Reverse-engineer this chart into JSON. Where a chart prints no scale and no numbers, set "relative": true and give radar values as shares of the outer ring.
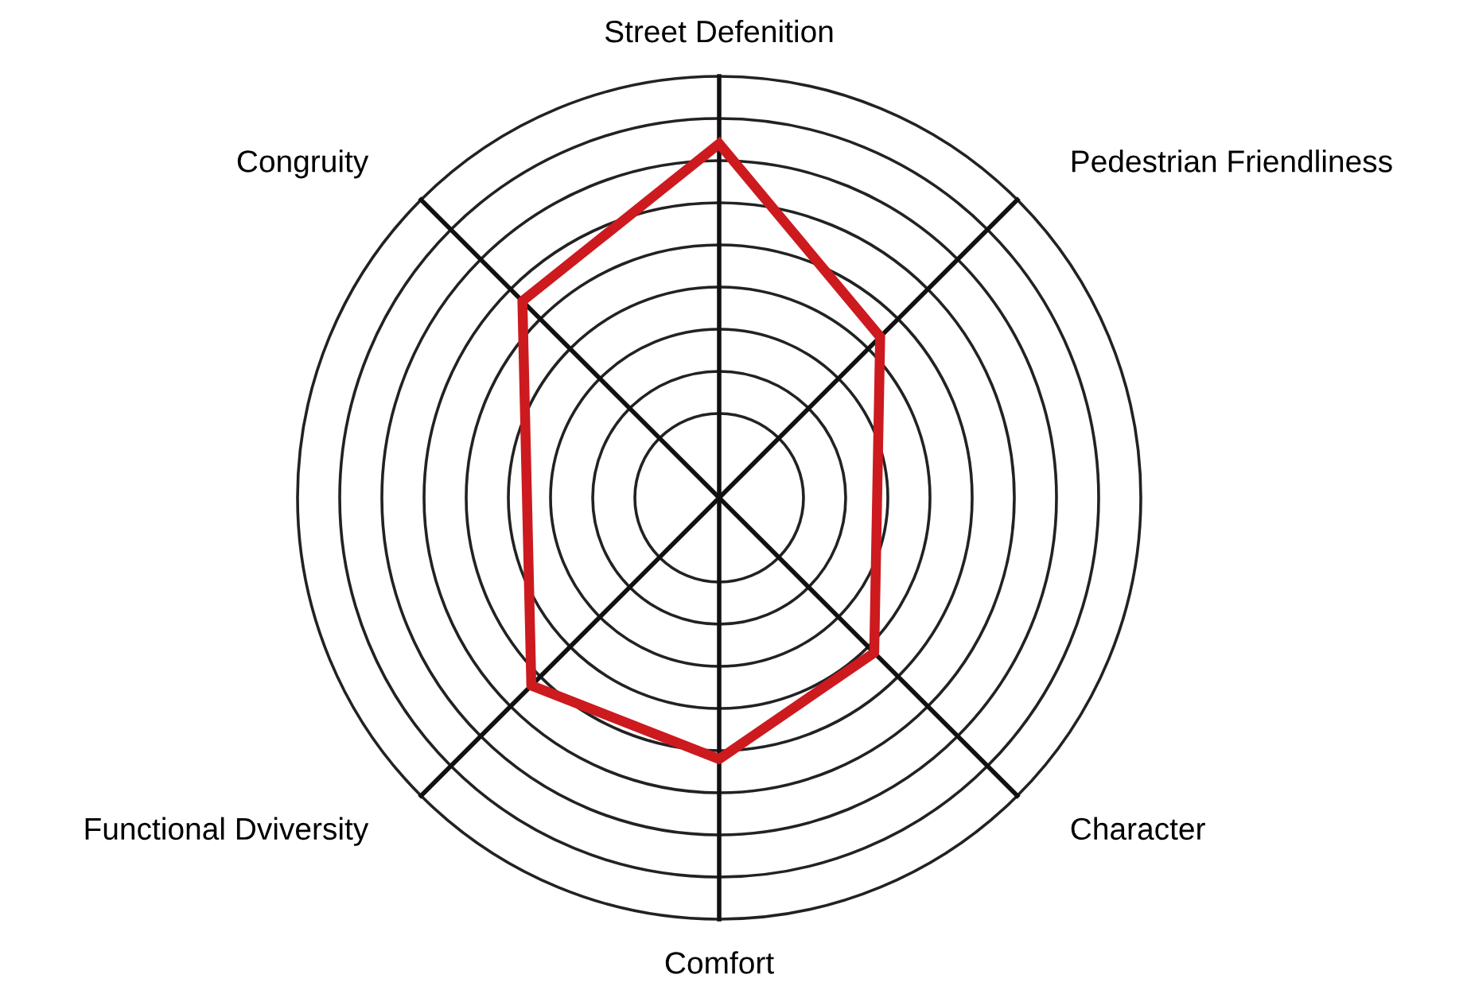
{
  "chart_data": {
    "type": "radar",
    "relative": true,
    "grid": true,
    "categories": [
      "Street Defenition",
      "Pedestrian Friendliness",
      "Character",
      "Comfort",
      "Functional Dviversity",
      "Congruity"
    ],
    "series": [
      {
        "color": "#cc1a1f",
        "values": [
          0.84,
          0.54,
          0.52,
          0.62,
          0.63,
          0.66
        ]
      }
    ]
  }
}
